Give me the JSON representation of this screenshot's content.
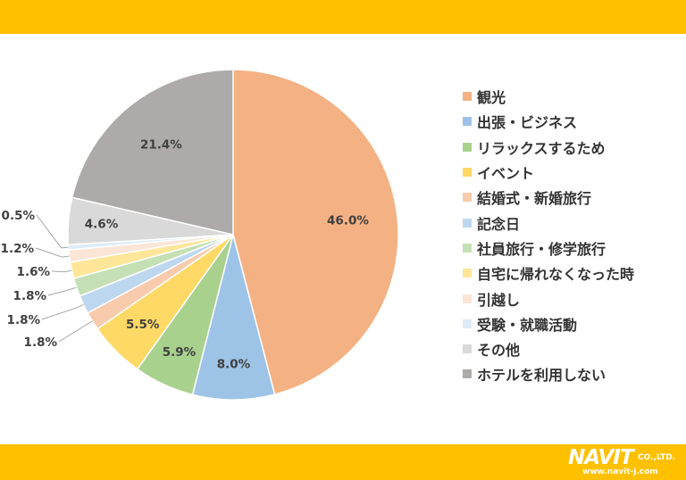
{
  "colors": {
    "band": "#FFC000",
    "page_bg": "#ffffff",
    "label": "#404040"
  },
  "logo": {
    "brand": "NAVIT",
    "company": "CO.,LTD.",
    "url": "www.navit-j.com"
  },
  "chart_data": {
    "type": "pie",
    "start_angle_deg": 0,
    "direction": "clockwise",
    "legend_position": "right",
    "categories": [
      "観光",
      "出張・ビジネス",
      "リラックスするため",
      "イベント",
      "結婚式・新婚旅行",
      "記念日",
      "社員旅行・修学旅行",
      "自宅に帰れなくなった時",
      "引越し",
      "受験・就職活動",
      "その他",
      "ホテルを利用しない"
    ],
    "values": [
      46.0,
      8.0,
      5.9,
      5.5,
      1.8,
      1.8,
      1.8,
      1.6,
      1.2,
      0.5,
      4.6,
      21.4
    ],
    "labels": [
      "46.0%",
      "8.0%",
      "5.9%",
      "5.5%",
      "1.8%",
      "1.8%",
      "1.8%",
      "1.6%",
      "1.2%",
      "0.5%",
      "4.6%",
      "21.4%"
    ],
    "colors": [
      "#F4B183",
      "#9DC3E6",
      "#A9D18E",
      "#FFD966",
      "#F8CBAD",
      "#BDD7EE",
      "#C5E0B4",
      "#FFE699",
      "#FBE5D6",
      "#DEEBF7",
      "#D9D9D9",
      "#AEAAAA"
    ]
  }
}
